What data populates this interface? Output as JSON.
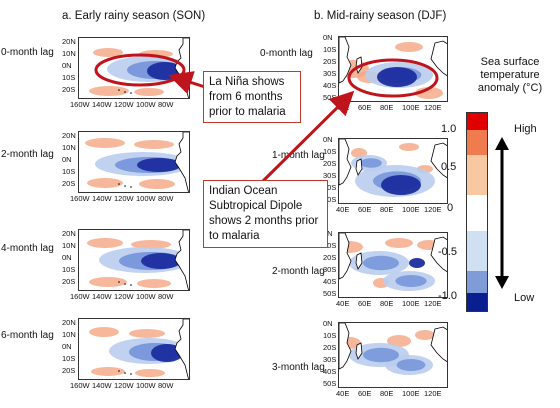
{
  "panels": {
    "left_title": "a. Early rainy season (SON)",
    "right_title": "b. Mid-rainy season (DJF)"
  },
  "left_lags": [
    "0-month lag",
    "2-month lag",
    "4-month lag",
    "6-month lag"
  ],
  "right_lags": [
    "0-month lag",
    "1-month lag",
    "2-month lag",
    "3-month lag"
  ],
  "left_axes": {
    "lat_ticks": [
      "20N",
      "10N",
      "0N",
      "10S",
      "20S"
    ],
    "lon_ticks": [
      "160W",
      "140W",
      "120W",
      "100W",
      "80W"
    ]
  },
  "right_axes": {
    "lat_ticks": [
      "0N",
      "10S",
      "20S",
      "30S",
      "40S",
      "50S"
    ],
    "lon_ticks": [
      "40E",
      "60E",
      "80E",
      "100E",
      "120E"
    ]
  },
  "callouts": {
    "la_nina": "La Niña shows from 6 months prior to malaria",
    "iod": "Indian Ocean Subtropical Dipole shows 2 months prior to malaria"
  },
  "legend": {
    "title": "Sea surface temperature anomaly (°C)",
    "labels": [
      "1.0",
      "0.5",
      "0",
      "-0.5",
      "-1.0"
    ],
    "high": "High",
    "low": "Low",
    "colors": [
      "#e00000",
      "#f07b4e",
      "#f8c8a3",
      "#ffffff",
      "#cfe0f2",
      "#7f9cd9",
      "#0a1f8f"
    ]
  },
  "colors": {
    "arrow": "#c0141c",
    "ellipse": "#c0141c",
    "warm": "#f4a582",
    "cool": "#6e8fd8",
    "deep_cool": "#1c2d9e",
    "land": "#ffffff"
  }
}
